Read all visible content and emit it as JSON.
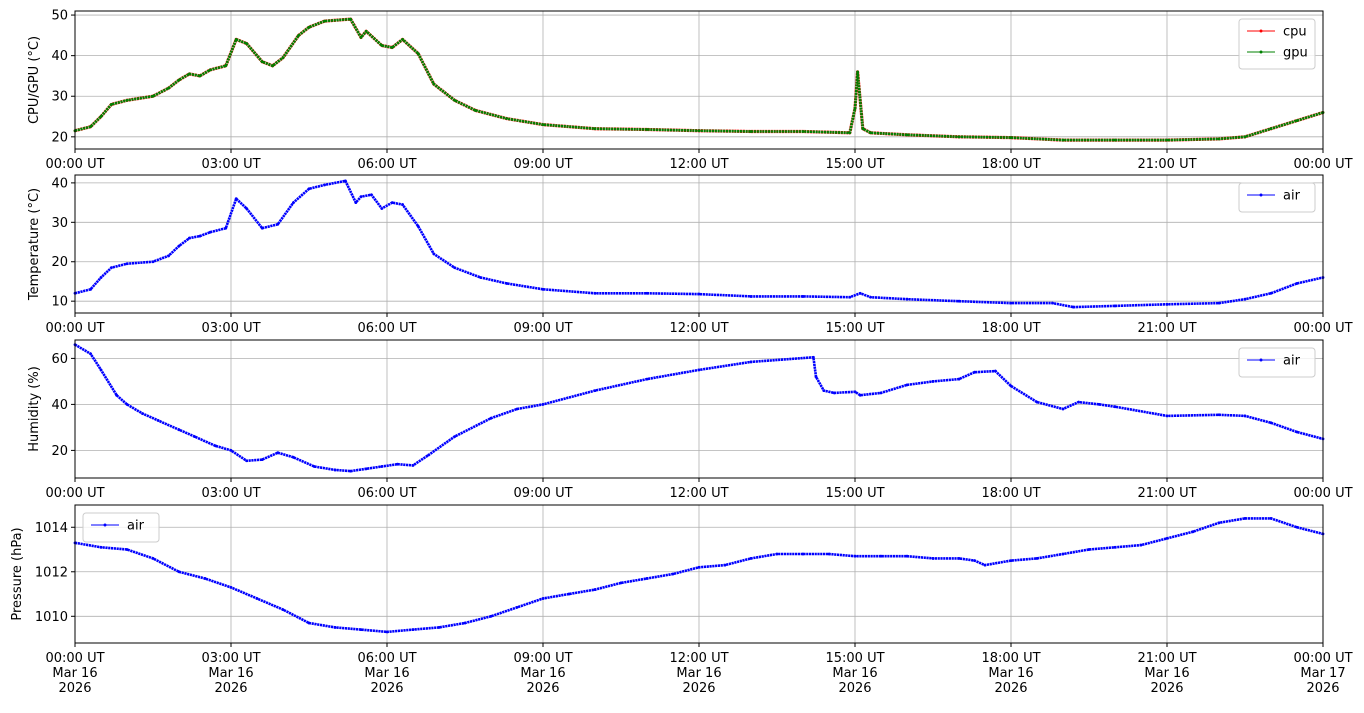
{
  "chart_data": [
    {
      "type": "line",
      "ylabel": "CPU/GPU (°C)",
      "ylim": [
        17,
        51
      ],
      "yticks": [
        20,
        30,
        40,
        50
      ],
      "grid": true,
      "legend_position": "top-right",
      "xtick_labels": [
        "00:00 UT",
        "03:00 UT",
        "06:00 UT",
        "09:00 UT",
        "12:00 UT",
        "15:00 UT",
        "18:00 UT",
        "21:00 UT",
        "00:00 UT"
      ],
      "series": [
        {
          "name": "cpu",
          "color": "#ff0000",
          "hours": [
            0,
            0.3,
            0.5,
            0.7,
            1,
            1.5,
            1.8,
            2,
            2.2,
            2.4,
            2.6,
            2.9,
            3.1,
            3.3,
            3.6,
            3.8,
            4,
            4.3,
            4.5,
            4.8,
            5.3,
            5.5,
            5.6,
            5.9,
            6.1,
            6.3,
            6.6,
            6.9,
            7.3,
            7.7,
            8.3,
            9,
            10,
            11,
            12,
            13,
            14,
            14.9,
            15.0,
            15.05,
            15.15,
            15.3,
            16,
            17,
            18,
            19,
            20,
            21,
            22,
            22.5,
            23,
            23.5,
            24
          ],
          "values": [
            21.5,
            22.5,
            25,
            28,
            29,
            30,
            32,
            34,
            35.5,
            35,
            36.5,
            37.5,
            44,
            43,
            38.5,
            37.5,
            39.5,
            45,
            47,
            48.5,
            49,
            44.5,
            46,
            42.5,
            42,
            44,
            40.5,
            33,
            29,
            26.5,
            24.5,
            23,
            22,
            21.8,
            21.5,
            21.3,
            21.3,
            21,
            27,
            36,
            22,
            21,
            20.5,
            20,
            19.8,
            19.2,
            19.2,
            19.2,
            19.5,
            20,
            22,
            24,
            26
          ]
        },
        {
          "name": "gpu",
          "color": "#008000",
          "hours": [
            0,
            0.3,
            0.5,
            0.7,
            1,
            1.5,
            1.8,
            2,
            2.2,
            2.4,
            2.6,
            2.9,
            3.1,
            3.3,
            3.6,
            3.8,
            4,
            4.3,
            4.5,
            4.8,
            5.3,
            5.5,
            5.6,
            5.9,
            6.1,
            6.3,
            6.6,
            6.9,
            7.3,
            7.7,
            8.3,
            9,
            10,
            11,
            12,
            13,
            14,
            14.9,
            15.0,
            15.05,
            15.15,
            15.3,
            16,
            17,
            18,
            19,
            20,
            21,
            22,
            22.5,
            23,
            23.5,
            24
          ],
          "values": [
            21.5,
            22.5,
            25,
            28,
            29,
            30,
            32,
            34,
            35.5,
            35,
            36.5,
            37.5,
            44,
            43,
            38.5,
            37.5,
            39.5,
            45,
            47,
            48.5,
            49,
            44.5,
            46,
            42.5,
            42,
            44,
            40.5,
            33,
            29,
            26.5,
            24.5,
            23,
            22,
            21.8,
            21.5,
            21.3,
            21.3,
            21,
            27,
            36,
            22,
            21,
            20.5,
            20,
            19.8,
            19.2,
            19.2,
            19.2,
            19.5,
            20,
            22,
            24,
            26
          ]
        }
      ]
    },
    {
      "type": "line",
      "ylabel": "Temperature (°C)",
      "ylim": [
        7,
        42
      ],
      "yticks": [
        10,
        20,
        30,
        40
      ],
      "grid": true,
      "legend_position": "top-right",
      "xtick_labels": [
        "00:00 UT",
        "03:00 UT",
        "06:00 UT",
        "09:00 UT",
        "12:00 UT",
        "15:00 UT",
        "18:00 UT",
        "21:00 UT",
        "00:00 UT"
      ],
      "series": [
        {
          "name": "air",
          "color": "#0000ff",
          "hours": [
            0,
            0.3,
            0.5,
            0.7,
            1,
            1.5,
            1.8,
            2,
            2.2,
            2.4,
            2.6,
            2.9,
            3.1,
            3.3,
            3.6,
            3.9,
            4.2,
            4.5,
            4.8,
            5.2,
            5.4,
            5.5,
            5.7,
            5.9,
            6.1,
            6.3,
            6.6,
            6.9,
            7.3,
            7.8,
            8.3,
            9,
            10,
            11,
            12,
            13,
            14,
            14.9,
            15.1,
            15.3,
            16,
            17,
            18,
            18.8,
            19.2,
            20,
            21,
            22,
            22.5,
            23,
            23.5,
            24
          ],
          "values": [
            12,
            13,
            16,
            18.5,
            19.5,
            20,
            21.5,
            24,
            26,
            26.5,
            27.5,
            28.5,
            36,
            33.5,
            28.5,
            29.5,
            35,
            38.5,
            39.5,
            40.5,
            35,
            36.5,
            37,
            33.5,
            35,
            34.5,
            29,
            22,
            18.5,
            16,
            14.5,
            13,
            12,
            12,
            11.8,
            11.2,
            11.2,
            11,
            12,
            11,
            10.5,
            10,
            9.5,
            9.5,
            8.5,
            8.8,
            9.2,
            9.5,
            10.5,
            12,
            14.5,
            16
          ]
        }
      ]
    },
    {
      "type": "line",
      "ylabel": "Humidity (%)",
      "ylim": [
        8,
        68
      ],
      "yticks": [
        20,
        40,
        60
      ],
      "grid": true,
      "legend_position": "top-right",
      "xtick_labels": [
        "00:00 UT",
        "03:00 UT",
        "06:00 UT",
        "09:00 UT",
        "12:00 UT",
        "15:00 UT",
        "18:00 UT",
        "21:00 UT",
        "00:00 UT"
      ],
      "series": [
        {
          "name": "air",
          "color": "#0000ff",
          "hours": [
            0,
            0.3,
            0.5,
            0.8,
            1,
            1.3,
            1.6,
            2,
            2.3,
            2.7,
            3,
            3.3,
            3.6,
            3.9,
            4.2,
            4.6,
            5,
            5.3,
            5.6,
            5.9,
            6.2,
            6.5,
            6.8,
            7.3,
            8,
            8.5,
            9,
            10,
            11,
            12,
            13,
            14.2,
            14.25,
            14.4,
            14.6,
            15,
            15.1,
            15.5,
            16,
            16.5,
            17,
            17.3,
            17.7,
            18,
            18.5,
            19,
            19.3,
            19.7,
            20,
            21,
            22,
            22.5,
            23,
            23.5,
            24
          ],
          "values": [
            66,
            62,
            55,
            44,
            40,
            36,
            33,
            29,
            26,
            22,
            20,
            15.5,
            16,
            19,
            17,
            13,
            11.5,
            11,
            12,
            13,
            14,
            13.5,
            18,
            26,
            34,
            38,
            40,
            46,
            51,
            55,
            58.5,
            60.5,
            52,
            46,
            45,
            45.5,
            44,
            45,
            48.5,
            50,
            51,
            54,
            54.5,
            48,
            41,
            38,
            41,
            40,
            39,
            35,
            35.5,
            35,
            32,
            28,
            25
          ]
        }
      ]
    },
    {
      "type": "line",
      "ylabel": "Pressure (hPa)",
      "ylim": [
        1008.8,
        1015.0
      ],
      "yticks": [
        1010,
        1012,
        1014
      ],
      "grid": true,
      "legend_position": "top-left",
      "xtick_labels": [
        "00:00 UT\nMar 16\n2026",
        "03:00 UT\nMar 16\n2026",
        "06:00 UT\nMar 16\n2026",
        "09:00 UT\nMar 16\n2026",
        "12:00 UT\nMar 16\n2026",
        "15:00 UT\nMar 16\n2026",
        "18:00 UT\nMar 16\n2026",
        "21:00 UT\nMar 16\n2026",
        "00:00 UT\nMar 17\n2026"
      ],
      "series": [
        {
          "name": "air",
          "color": "#0000ff",
          "hours": [
            0,
            0.5,
            1,
            1.5,
            2,
            2.5,
            3,
            3.5,
            4,
            4.5,
            5,
            5.5,
            6,
            6.5,
            7,
            7.5,
            8,
            8.5,
            9,
            9.5,
            10,
            10.5,
            11,
            11.5,
            12,
            12.5,
            13,
            13.5,
            14,
            14.5,
            15,
            15.5,
            16,
            16.5,
            17,
            17.3,
            17.5,
            18,
            18.5,
            19,
            19.5,
            20,
            20.5,
            21,
            21.5,
            22,
            22.5,
            23,
            23.5,
            24
          ],
          "values": [
            1013.3,
            1013.1,
            1013.0,
            1012.6,
            1012.0,
            1011.7,
            1011.3,
            1010.8,
            1010.3,
            1009.7,
            1009.5,
            1009.4,
            1009.3,
            1009.4,
            1009.5,
            1009.7,
            1010.0,
            1010.4,
            1010.8,
            1011.0,
            1011.2,
            1011.5,
            1011.7,
            1011.9,
            1012.2,
            1012.3,
            1012.6,
            1012.8,
            1012.8,
            1012.8,
            1012.7,
            1012.7,
            1012.7,
            1012.6,
            1012.6,
            1012.5,
            1012.3,
            1012.5,
            1012.6,
            1012.8,
            1013.0,
            1013.1,
            1013.2,
            1013.5,
            1013.8,
            1014.2,
            1014.4,
            1014.4,
            1014.0,
            1013.7
          ]
        }
      ]
    }
  ]
}
